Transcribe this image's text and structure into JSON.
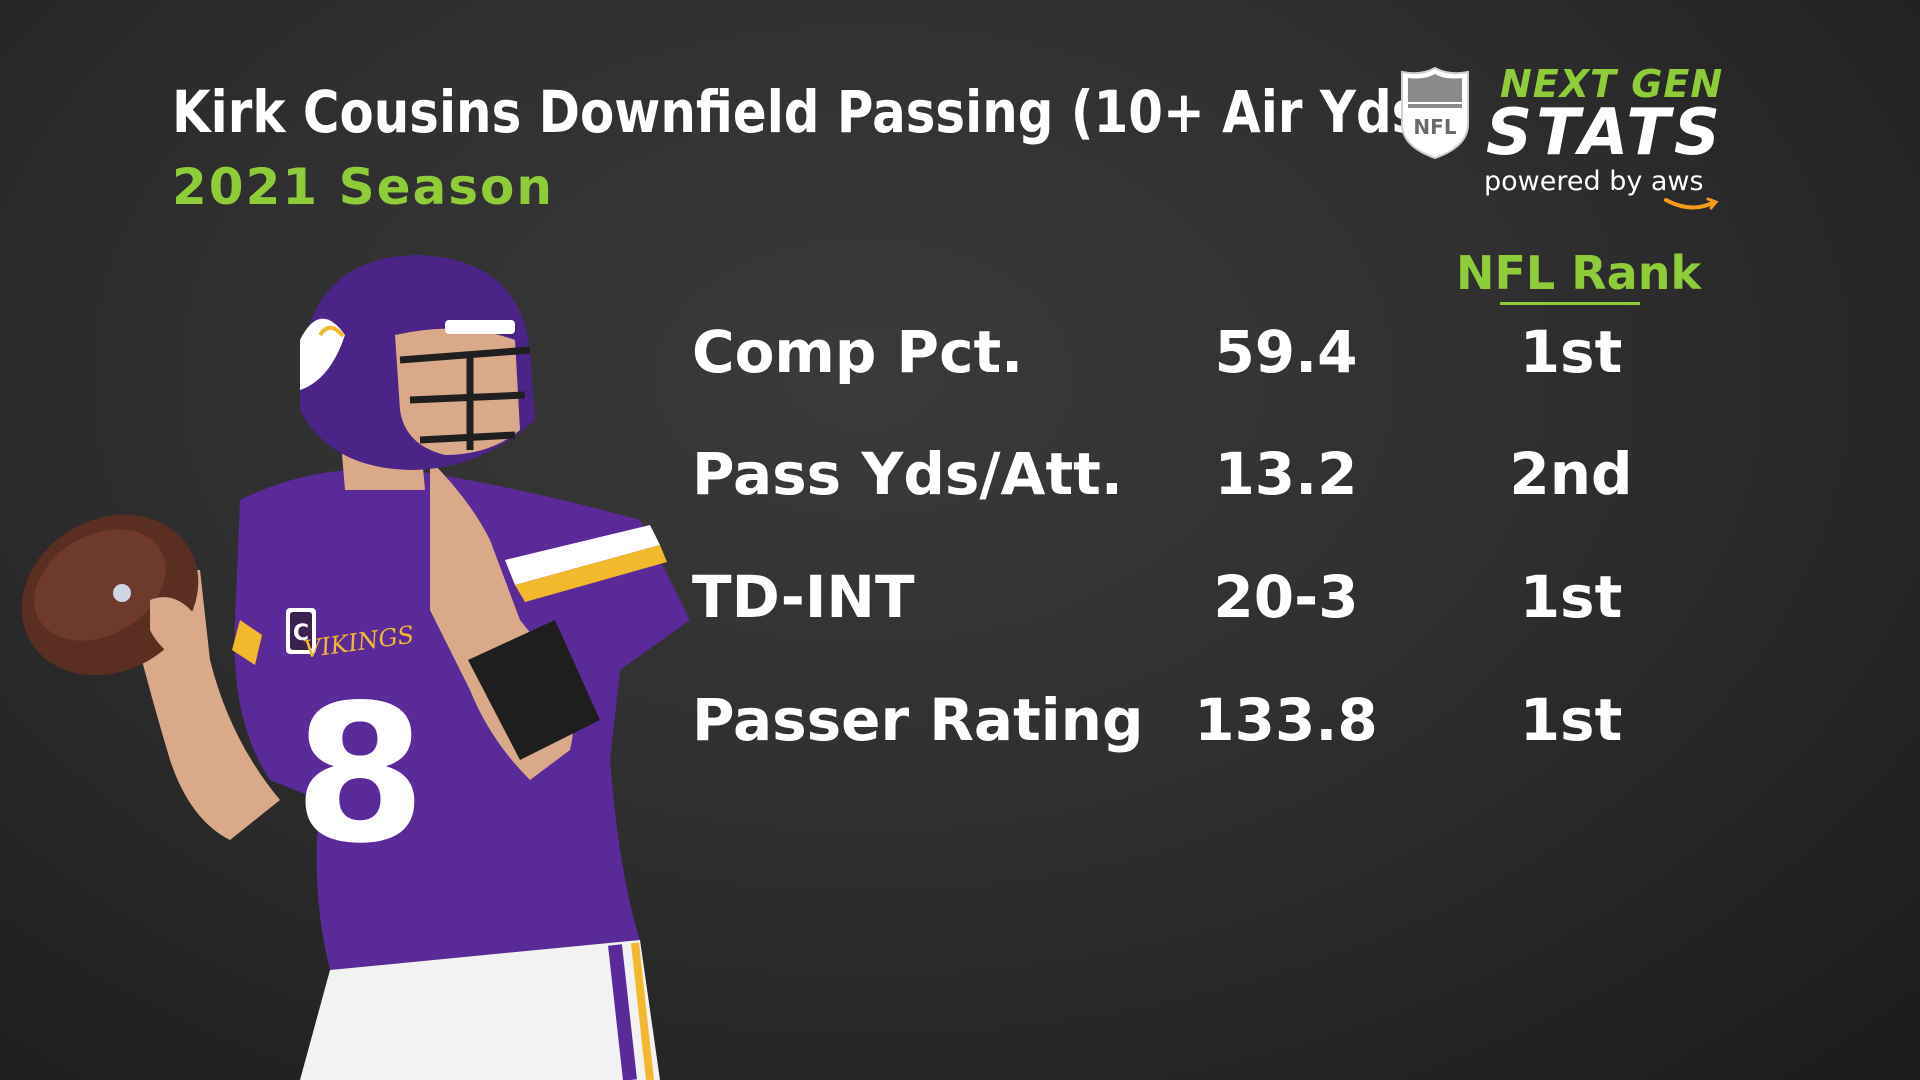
{
  "header": {
    "title": "Kirk Cousins Downfield Passing (10+ Air Yds)",
    "subtitle": "2021 Season"
  },
  "logo": {
    "league_badge": "NFL",
    "line1": "NEXT GEN",
    "line2": "STATS",
    "line3": "powered by aws",
    "icon": "nfl-shield-icon"
  },
  "table": {
    "rank_header": "NFL Rank",
    "rows": [
      {
        "label": "Comp Pct.",
        "value": "59.4",
        "rank": "1st"
      },
      {
        "label": "Pass Yds/Att.",
        "value": "13.2",
        "rank": "2nd"
      },
      {
        "label": "TD-INT",
        "value": "20-3",
        "rank": "1st"
      },
      {
        "label": "Passer Rating",
        "value": "133.8",
        "rank": "1st"
      }
    ]
  },
  "player": {
    "jersey_number": "8",
    "team_wordmark": "VIKINGS",
    "captain_patch": "C"
  },
  "colors": {
    "accent_green": "#8fcc3a",
    "jersey_purple": "#5b2a99",
    "gold": "#f2b92c",
    "background": "#2f2f2f"
  }
}
